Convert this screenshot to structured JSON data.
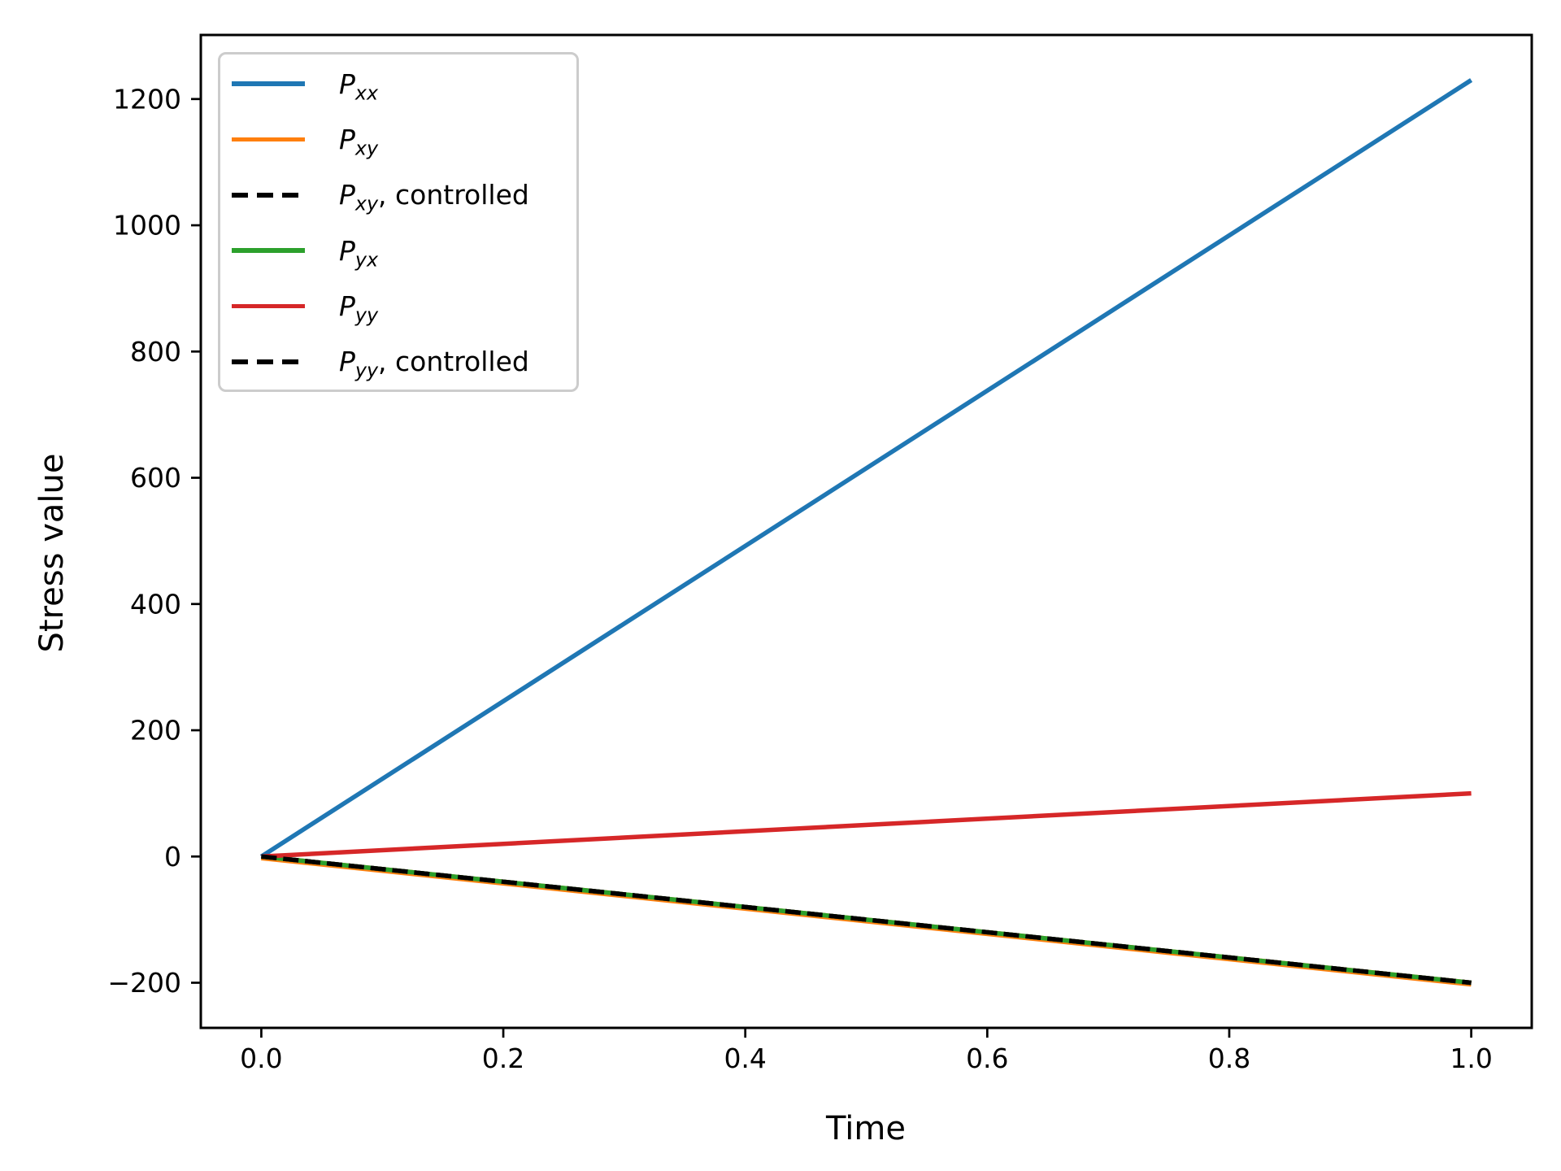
{
  "figure": {
    "background_color": "#ffffff",
    "spine_color": "#000000",
    "legend_border_color": "#cccccc"
  },
  "chart_data": {
    "type": "line",
    "title": "",
    "xlabel": "Time",
    "ylabel": "Stress value",
    "grid": false,
    "legend_position": "upper left",
    "xlim": [
      -0.05,
      1.05
    ],
    "ylim": [
      -271.5,
      1301.5
    ],
    "xticks": [
      0.0,
      0.2,
      0.4,
      0.6,
      0.8,
      1.0
    ],
    "xtick_labels": [
      "0.0",
      "0.2",
      "0.4",
      "0.6",
      "0.8",
      "1.0"
    ],
    "yticks": [
      -200,
      0,
      200,
      400,
      600,
      800,
      1000,
      1200
    ],
    "ytick_labels": [
      "−200",
      "0",
      "200",
      "400",
      "600",
      "800",
      "1000",
      "1200"
    ],
    "x": [
      0.0,
      1.0
    ],
    "series": [
      {
        "name": "P_xx",
        "label": "P_xx",
        "label_base": "P",
        "label_sub": "xx",
        "label_suffix": "",
        "color": "#1f77b4",
        "linestyle": "solid",
        "values": [
          0,
          1230
        ]
      },
      {
        "name": "P_xy",
        "label": "P_xy",
        "label_base": "P",
        "label_sub": "xy",
        "label_suffix": "",
        "color": "#ff7f0e",
        "linestyle": "solid",
        "values": [
          0,
          -200
        ]
      },
      {
        "name": "P_xy_controlled",
        "label": "P_xy, controlled",
        "label_base": "P",
        "label_sub": "xy",
        "label_suffix": ", controlled",
        "color": "#000000",
        "linestyle": "dashed",
        "values": [
          0,
          -200
        ]
      },
      {
        "name": "P_yx",
        "label": "P_yx",
        "label_base": "P",
        "label_sub": "yx",
        "label_suffix": "",
        "color": "#2ca02c",
        "linestyle": "solid",
        "values": [
          0,
          -200
        ]
      },
      {
        "name": "P_yy",
        "label": "P_yy",
        "label_base": "P",
        "label_sub": "yy",
        "label_suffix": "",
        "color": "#d62728",
        "linestyle": "solid",
        "values": [
          0,
          100
        ]
      },
      {
        "name": "P_yy_controlled",
        "label": "P_yy, controlled",
        "label_base": "P",
        "label_sub": "yy",
        "label_suffix": ", controlled",
        "color": "#000000",
        "linestyle": "dashed",
        "values": [
          0,
          -200
        ]
      }
    ]
  }
}
